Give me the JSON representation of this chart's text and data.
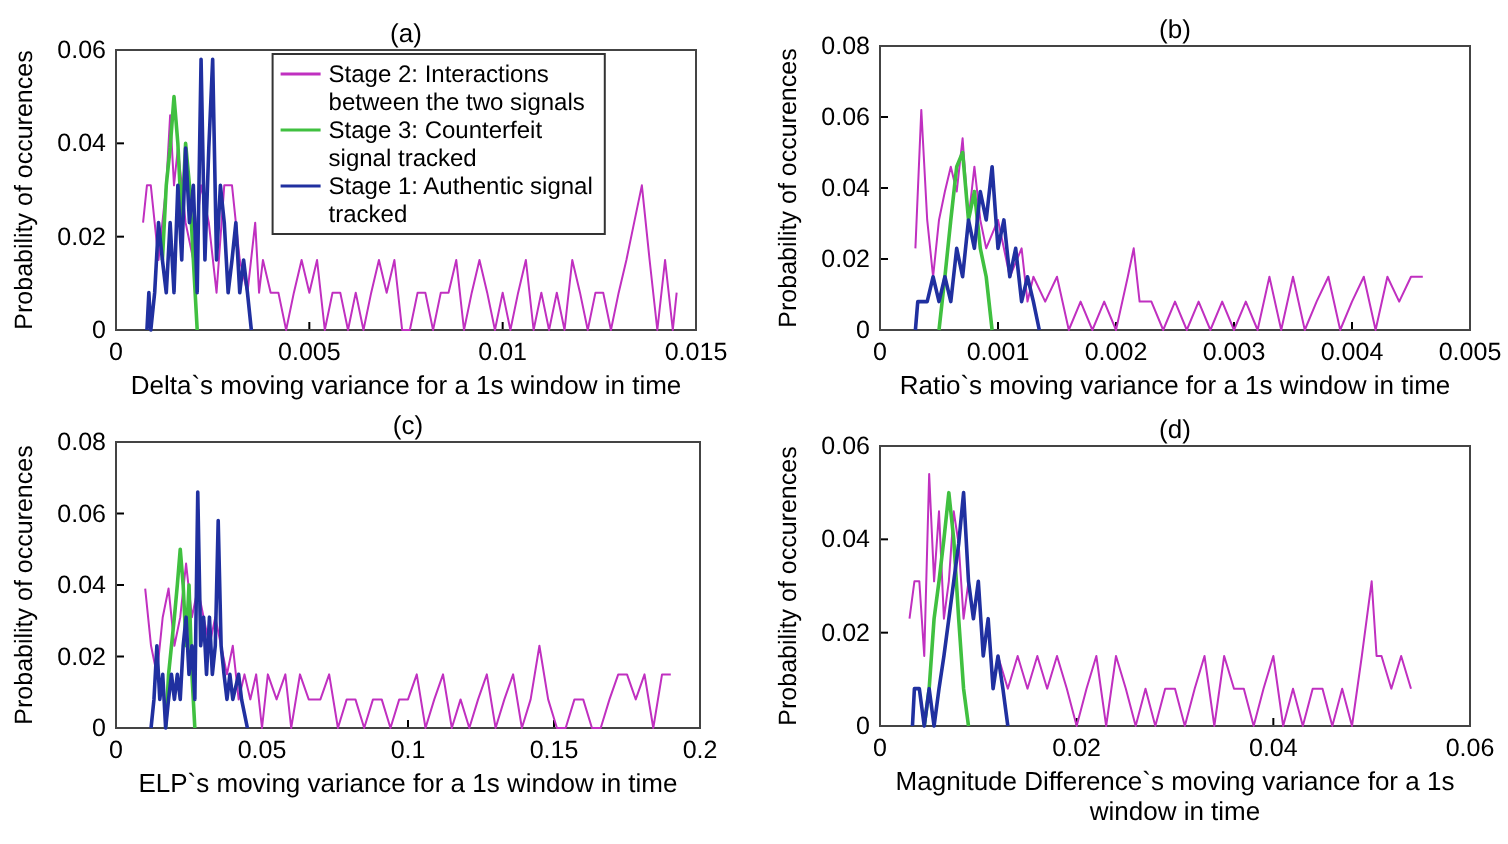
{
  "chart_data": [
    {
      "type": "line",
      "title": "(a)",
      "xlabel": "Delta`s moving variance for a 1s window in time",
      "ylabel": "Probability of occurences",
      "xlim": [
        0,
        0.015
      ],
      "xticks": [
        0,
        0.005,
        0.01,
        0.015
      ],
      "ylim": [
        0,
        0.06
      ],
      "yticks": [
        0,
        0.02,
        0.04,
        0.06
      ],
      "legend": "top",
      "grid": false,
      "series": [
        {
          "name": "Stage 2: Interactions between the two signals",
          "color": "#c030c0",
          "x": [
            0.0007,
            0.0008,
            0.0009,
            0.001,
            0.0011,
            0.0012,
            0.0013,
            0.0014,
            0.0015,
            0.0016,
            0.0017,
            0.0018,
            0.002,
            0.0022,
            0.0024,
            0.0026,
            0.0028,
            0.003,
            0.0032,
            0.0034,
            0.0036,
            0.0037,
            0.0038,
            0.004,
            0.0042,
            0.0044,
            0.0046,
            0.0048,
            0.005,
            0.0052,
            0.0054,
            0.0056,
            0.0058,
            0.006,
            0.0062,
            0.0064,
            0.0066,
            0.0068,
            0.007,
            0.0072,
            0.0074,
            0.0076,
            0.0078,
            0.008,
            0.0082,
            0.0084,
            0.0086,
            0.0088,
            0.009,
            0.0092,
            0.0094,
            0.0096,
            0.0098,
            0.01,
            0.0102,
            0.0104,
            0.0106,
            0.0108,
            0.011,
            0.0112,
            0.0114,
            0.0116,
            0.0118,
            0.012,
            0.0122,
            0.0124,
            0.0126,
            0.0128,
            0.013,
            0.0132,
            0.0134,
            0.0136,
            0.0138,
            0.014,
            0.0142,
            0.0144,
            0.0145
          ],
          "values": [
            0.023,
            0.031,
            0.031,
            0.023,
            0.015,
            0.023,
            0.031,
            0.046,
            0.031,
            0.039,
            0.031,
            0.023,
            0.015,
            0.031,
            0.023,
            0.008,
            0.031,
            0.031,
            0.015,
            0.008,
            0.023,
            0.008,
            0.015,
            0.008,
            0.008,
            0,
            0.008,
            0.015,
            0.008,
            0.015,
            0,
            0.008,
            0.008,
            0,
            0.008,
            0,
            0.008,
            0.015,
            0.008,
            0.015,
            0,
            0,
            0.008,
            0.008,
            0,
            0.008,
            0.008,
            0.015,
            0,
            0.008,
            0.015,
            0.008,
            0,
            0.008,
            0,
            0.008,
            0.015,
            0,
            0.008,
            0,
            0.008,
            0,
            0.015,
            0.008,
            0,
            0.008,
            0.008,
            0,
            0.008,
            0.015,
            0.023,
            0.031,
            0.015,
            0,
            0.015,
            0,
            0.008
          ]
        },
        {
          "name": "Stage 3: Counterfeit signal tracked",
          "color": "#40c040",
          "x": [
            0.0012,
            0.0013,
            0.0014,
            0.0015,
            0.0016,
            0.0017,
            0.0018,
            0.0019,
            0.002,
            0.0021
          ],
          "values": [
            0.015,
            0.031,
            0.039,
            0.05,
            0.04,
            0.023,
            0.04,
            0.031,
            0.015,
            0
          ]
        },
        {
          "name": "Stage 1: Authentic signal tracked",
          "color": "#2030a0",
          "x": [
            0.0008,
            0.00085,
            0.0009,
            0.001,
            0.0011,
            0.0012,
            0.0013,
            0.0014,
            0.0015,
            0.0016,
            0.0017,
            0.0018,
            0.0019,
            0.002,
            0.0021,
            0.0022,
            0.0023,
            0.0024,
            0.0025,
            0.0026,
            0.0027,
            0.0028,
            0.0029,
            0.003,
            0.0031,
            0.0032,
            0.0033,
            0.0034,
            0.0035
          ],
          "values": [
            0,
            0.008,
            0,
            0.008,
            0.023,
            0.015,
            0.008,
            0.023,
            0.008,
            0.031,
            0.015,
            0.039,
            0.023,
            0.031,
            0.008,
            0.058,
            0.015,
            0.039,
            0.058,
            0.015,
            0.031,
            0.023,
            0.008,
            0.015,
            0.023,
            0.008,
            0.015,
            0.008,
            0
          ]
        }
      ]
    },
    {
      "type": "line",
      "title": "(b)",
      "xlabel": "Ratio`s moving variance for a 1s window in time",
      "ylabel": "Probability of occurences",
      "xlim": [
        0,
        0.005
      ],
      "xticks": [
        0,
        0.001,
        0.002,
        0.003,
        0.004,
        0.005
      ],
      "ylim": [
        0,
        0.08
      ],
      "yticks": [
        0,
        0.02,
        0.04,
        0.06,
        0.08
      ],
      "grid": false,
      "series": [
        {
          "color": "#c030c0",
          "x": [
            0.0003,
            0.00035,
            0.0004,
            0.00045,
            0.0005,
            0.00055,
            0.0006,
            0.00065,
            0.0007,
            0.00075,
            0.0008,
            0.00085,
            0.0009,
            0.001,
            0.0011,
            0.0012,
            0.00125,
            0.0013,
            0.0014,
            0.0015,
            0.0016,
            0.0017,
            0.0018,
            0.0019,
            0.002,
            0.0021,
            0.00215,
            0.0022,
            0.0023,
            0.0024,
            0.0025,
            0.0026,
            0.0027,
            0.0028,
            0.0029,
            0.003,
            0.0031,
            0.0032,
            0.0033,
            0.0034,
            0.0035,
            0.0036,
            0.0037,
            0.0038,
            0.0039,
            0.004,
            0.0041,
            0.0042,
            0.0043,
            0.0044,
            0.0045,
            0.0046
          ],
          "values": [
            0.023,
            0.062,
            0.031,
            0.015,
            0.031,
            0.039,
            0.046,
            0.039,
            0.054,
            0.031,
            0.046,
            0.031,
            0.023,
            0.031,
            0.015,
            0.023,
            0.008,
            0.015,
            0.008,
            0.015,
            0,
            0.008,
            0,
            0.008,
            0,
            0.015,
            0.023,
            0.008,
            0.008,
            0,
            0.008,
            0,
            0.008,
            0,
            0.008,
            0,
            0.008,
            0,
            0.015,
            0,
            0.015,
            0,
            0.008,
            0.015,
            0,
            0.008,
            0.015,
            0,
            0.015,
            0.008,
            0.015,
            0.015
          ]
        },
        {
          "color": "#40c040",
          "x": [
            0.0005,
            0.00055,
            0.0006,
            0.00065,
            0.0007,
            0.00075,
            0.0008,
            0.00085,
            0.0009,
            0.00095
          ],
          "values": [
            0,
            0.015,
            0.031,
            0.046,
            0.05,
            0.031,
            0.039,
            0.023,
            0.015,
            0
          ]
        },
        {
          "color": "#2030a0",
          "x": [
            0.0003,
            0.00032,
            0.0004,
            0.00045,
            0.0005,
            0.00055,
            0.0006,
            0.00065,
            0.0007,
            0.00075,
            0.0008,
            0.00085,
            0.0009,
            0.00095,
            0.001,
            0.00105,
            0.0011,
            0.00115,
            0.0012,
            0.00125,
            0.0013,
            0.00135
          ],
          "values": [
            0,
            0.008,
            0.008,
            0.015,
            0.008,
            0.015,
            0.008,
            0.023,
            0.015,
            0.031,
            0.023,
            0.039,
            0.031,
            0.046,
            0.023,
            0.031,
            0.015,
            0.023,
            0.008,
            0.015,
            0.008,
            0
          ]
        }
      ]
    },
    {
      "type": "line",
      "title": "(c)",
      "xlabel": "ELP`s moving variance for a 1s window in time",
      "ylabel": "Probability of occurences",
      "xlim": [
        0,
        0.2
      ],
      "xticks": [
        0,
        0.05,
        0.1,
        0.15,
        0.2
      ],
      "ylim": [
        0,
        0.08
      ],
      "yticks": [
        0,
        0.02,
        0.04,
        0.06,
        0.08
      ],
      "grid": false,
      "series": [
        {
          "color": "#c030c0",
          "x": [
            0.01,
            0.012,
            0.014,
            0.016,
            0.018,
            0.02,
            0.022,
            0.024,
            0.026,
            0.028,
            0.03,
            0.032,
            0.034,
            0.036,
            0.038,
            0.04,
            0.042,
            0.044,
            0.046,
            0.048,
            0.05,
            0.052,
            0.055,
            0.058,
            0.06,
            0.063,
            0.066,
            0.07,
            0.073,
            0.076,
            0.079,
            0.082,
            0.085,
            0.088,
            0.091,
            0.094,
            0.097,
            0.1,
            0.103,
            0.106,
            0.109,
            0.112,
            0.115,
            0.118,
            0.121,
            0.124,
            0.127,
            0.13,
            0.133,
            0.136,
            0.139,
            0.142,
            0.145,
            0.148,
            0.151,
            0.154,
            0.157,
            0.16,
            0.163,
            0.166,
            0.169,
            0.172,
            0.175,
            0.178,
            0.181,
            0.184,
            0.187,
            0.19
          ],
          "values": [
            0.039,
            0.023,
            0.015,
            0.031,
            0.039,
            0.023,
            0.031,
            0.046,
            0.031,
            0.039,
            0.031,
            0.023,
            0.031,
            0.023,
            0.015,
            0.023,
            0.008,
            0.015,
            0.008,
            0.015,
            0,
            0.015,
            0.008,
            0.015,
            0,
            0.015,
            0.008,
            0.008,
            0.015,
            0,
            0.008,
            0.008,
            0,
            0.008,
            0.008,
            0,
            0.008,
            0.008,
            0.015,
            0,
            0.008,
            0.015,
            0,
            0.008,
            0,
            0.008,
            0.015,
            0,
            0.008,
            0.015,
            0,
            0.008,
            0.023,
            0.008,
            0,
            0,
            0.008,
            0.008,
            0,
            0,
            0.008,
            0.015,
            0.015,
            0.008,
            0.015,
            0,
            0.015,
            0.015
          ]
        },
        {
          "color": "#40c040",
          "x": [
            0.017,
            0.018,
            0.019,
            0.02,
            0.021,
            0.022,
            0.023,
            0.024,
            0.025,
            0.026,
            0.027
          ],
          "values": [
            0,
            0.015,
            0.023,
            0.031,
            0.04,
            0.05,
            0.04,
            0.023,
            0.04,
            0.015,
            0
          ]
        },
        {
          "color": "#2030a0",
          "x": [
            0.012,
            0.013,
            0.014,
            0.015,
            0.016,
            0.017,
            0.018,
            0.019,
            0.02,
            0.021,
            0.022,
            0.023,
            0.024,
            0.025,
            0.026,
            0.027,
            0.028,
            0.029,
            0.03,
            0.031,
            0.032,
            0.033,
            0.034,
            0.035,
            0.036,
            0.037,
            0.038,
            0.039,
            0.04,
            0.042,
            0.043,
            0.045
          ],
          "values": [
            0,
            0.008,
            0.023,
            0.008,
            0.015,
            0,
            0.008,
            0.015,
            0.008,
            0.015,
            0.008,
            0.023,
            0.031,
            0.015,
            0.023,
            0.008,
            0.066,
            0.023,
            0.031,
            0.015,
            0.031,
            0.015,
            0.023,
            0.058,
            0.023,
            0.015,
            0.008,
            0.015,
            0.008,
            0.015,
            0.008,
            0
          ]
        }
      ]
    },
    {
      "type": "line",
      "title": "(d)",
      "xlabel": "Magnitude Difference`s moving variance for a 1s window in time",
      "ylabel": "Probability of occurences",
      "xlim": [
        0,
        0.06
      ],
      "xticks": [
        0,
        0.02,
        0.04,
        0.06
      ],
      "ylim": [
        0,
        0.06
      ],
      "yticks": [
        0,
        0.02,
        0.04,
        0.06
      ],
      "grid": false,
      "series": [
        {
          "color": "#c030c0",
          "x": [
            0.003,
            0.0035,
            0.004,
            0.0045,
            0.005,
            0.0055,
            0.006,
            0.0065,
            0.007,
            0.0075,
            0.008,
            0.0085,
            0.009,
            0.0095,
            0.01,
            0.0105,
            0.011,
            0.0115,
            0.012,
            0.013,
            0.014,
            0.015,
            0.016,
            0.017,
            0.018,
            0.019,
            0.02,
            0.021,
            0.022,
            0.023,
            0.024,
            0.025,
            0.026,
            0.027,
            0.028,
            0.029,
            0.03,
            0.031,
            0.032,
            0.033,
            0.034,
            0.035,
            0.036,
            0.037,
            0.038,
            0.039,
            0.04,
            0.041,
            0.042,
            0.043,
            0.044,
            0.045,
            0.046,
            0.047,
            0.048,
            0.049,
            0.05,
            0.0505,
            0.051,
            0.052,
            0.053,
            0.054
          ],
          "values": [
            0.023,
            0.031,
            0.031,
            0.015,
            0.054,
            0.031,
            0.046,
            0.023,
            0.031,
            0.046,
            0.039,
            0.023,
            0.031,
            0.023,
            0.031,
            0.015,
            0.023,
            0.008,
            0.015,
            0.008,
            0.015,
            0.008,
            0.015,
            0.008,
            0.015,
            0.008,
            0,
            0.008,
            0.015,
            0,
            0.015,
            0.008,
            0,
            0.008,
            0,
            0.008,
            0.008,
            0,
            0.008,
            0.015,
            0,
            0.015,
            0.008,
            0.008,
            0,
            0.008,
            0.015,
            0,
            0.008,
            0,
            0.008,
            0.008,
            0,
            0.008,
            0,
            0.015,
            0.031,
            0.015,
            0.015,
            0.008,
            0.015,
            0.008
          ]
        },
        {
          "color": "#40c040",
          "x": [
            0.0045,
            0.005,
            0.0055,
            0.006,
            0.0065,
            0.007,
            0.0075,
            0.008,
            0.0085,
            0.009
          ],
          "values": [
            0,
            0.008,
            0.023,
            0.031,
            0.04,
            0.05,
            0.04,
            0.023,
            0.008,
            0
          ]
        },
        {
          "color": "#2030a0",
          "x": [
            0.0033,
            0.0035,
            0.004,
            0.0045,
            0.005,
            0.0055,
            0.006,
            0.0065,
            0.007,
            0.0075,
            0.008,
            0.0085,
            0.009,
            0.0095,
            0.01,
            0.0105,
            0.011,
            0.0115,
            0.012,
            0.0125,
            0.013
          ],
          "values": [
            0,
            0.008,
            0.008,
            0,
            0.008,
            0,
            0.008,
            0.015,
            0.023,
            0.031,
            0.039,
            0.05,
            0.031,
            0.023,
            0.031,
            0.015,
            0.023,
            0.008,
            0.015,
            0.008,
            0
          ]
        }
      ]
    }
  ]
}
